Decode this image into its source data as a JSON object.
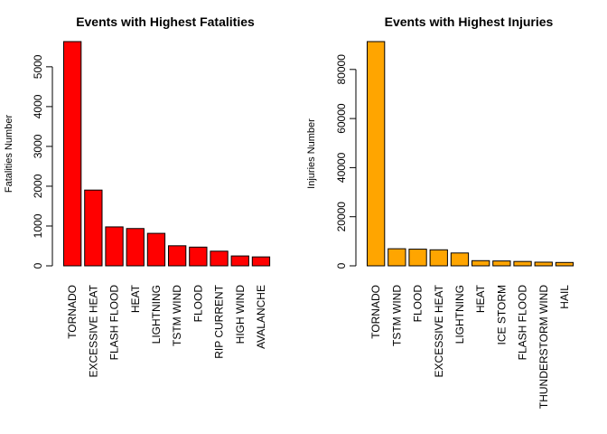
{
  "chart_data": [
    {
      "type": "bar",
      "title": "Events with Highest Fatalities",
      "xlabel": "",
      "ylabel": "Fatalities Number",
      "categories": [
        "TORNADO",
        "EXCESSIVE HEAT",
        "FLASH FLOOD",
        "HEAT",
        "LIGHTNING",
        "TSTM WIND",
        "FLOOD",
        "RIP CURRENT",
        "HIGH WIND",
        "AVALANCHE"
      ],
      "values": [
        5633,
        1903,
        978,
        937,
        816,
        504,
        470,
        368,
        248,
        224
      ],
      "yticks": [
        0,
        1000,
        2000,
        3000,
        4000,
        5000
      ],
      "ylim": [
        0,
        5633
      ],
      "color": "#ff0000"
    },
    {
      "type": "bar",
      "title": "Events with Highest Injuries",
      "xlabel": "",
      "ylabel": "Injuries Number",
      "categories": [
        "TORNADO",
        "TSTM WIND",
        "FLOOD",
        "EXCESSIVE HEAT",
        "LIGHTNING",
        "HEAT",
        "ICE STORM",
        "FLASH FLOOD",
        "THUNDERSTORM WIND",
        "HAIL"
      ],
      "values": [
        91346,
        6957,
        6789,
        6525,
        5230,
        2100,
        1975,
        1777,
        1488,
        1361
      ],
      "yticks": [
        0,
        20000,
        40000,
        60000,
        80000
      ],
      "ylim": [
        0,
        91346
      ],
      "color": "#ffa500"
    }
  ]
}
